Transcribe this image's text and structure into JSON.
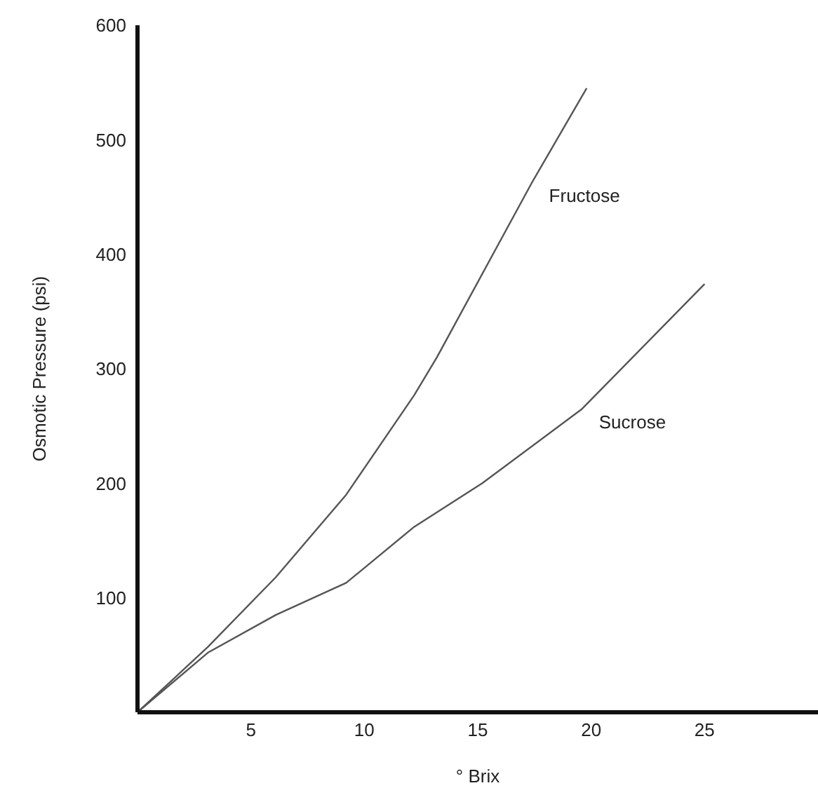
{
  "chart_data": {
    "type": "line",
    "xlabel": "° Brix",
    "ylabel": "Osmotic Pressure (psi)",
    "xlim": [
      0,
      30
    ],
    "xticks": [
      5,
      10,
      15,
      20,
      25
    ],
    "ylim": [
      0,
      600
    ],
    "yticks": [
      100,
      200,
      300,
      400,
      500,
      600
    ],
    "grid": false,
    "legend": false,
    "marker": "none",
    "line_style": "solid",
    "series": [
      {
        "name": "Fructose",
        "color": "#555555",
        "x": [
          0,
          3.1,
          6.1,
          9.2,
          12.2,
          13.2,
          17.4,
          19.8
        ],
        "values": [
          0,
          57,
          118,
          190,
          277,
          310,
          463,
          545
        ]
      },
      {
        "name": "Sucrose",
        "color": "#555555",
        "x": [
          0,
          3.1,
          6.1,
          9.2,
          12.2,
          15.2,
          19.6,
          25
        ],
        "values": [
          0,
          52,
          85,
          113,
          162,
          200,
          265,
          374
        ]
      }
    ]
  }
}
